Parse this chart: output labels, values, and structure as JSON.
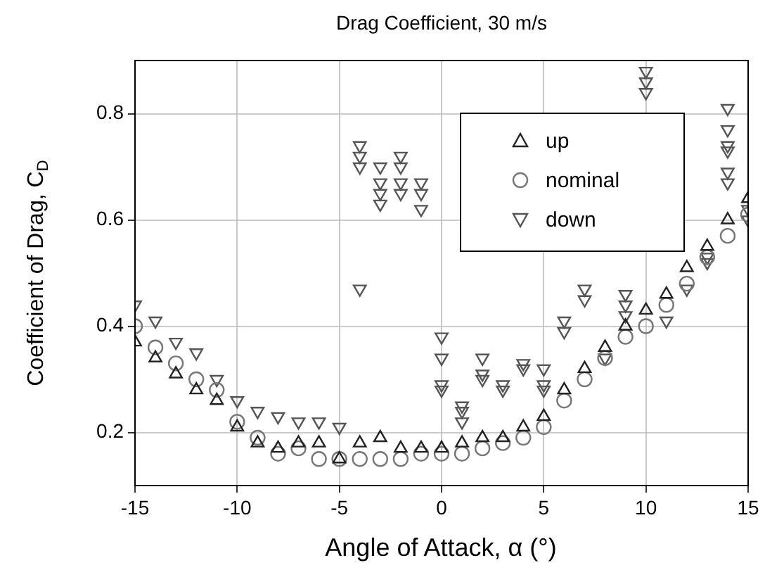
{
  "chart_data": {
    "type": "scatter",
    "title": "Drag Coefficient, 30 m/s",
    "xlabel": "Angle of Attack, α (°)",
    "ylabel": "Coefficient of Drag, C$_{D}$",
    "xlim": [
      -15,
      15
    ],
    "xticks": [
      -15,
      -10,
      -5,
      0,
      5,
      10,
      15
    ],
    "ylim": [
      0.1,
      0.9
    ],
    "yticks": [
      0.2,
      0.4,
      0.6,
      0.8
    ],
    "grid": true,
    "legend": "top right",
    "series": [
      {
        "name": "up",
        "color": "#222222",
        "marker": "triangle",
        "x": [
          -15,
          -14,
          -13,
          -12,
          -11,
          -10,
          -9,
          -8,
          -7,
          -6,
          -5,
          -4,
          -3,
          -2,
          -1,
          0,
          1,
          2,
          3,
          4,
          5,
          6,
          7,
          8,
          9,
          10,
          11,
          12,
          13,
          14,
          15
        ],
        "values": [
          0.37,
          0.34,
          0.31,
          0.28,
          0.26,
          0.21,
          0.18,
          0.17,
          0.18,
          0.18,
          0.15,
          0.18,
          0.19,
          0.17,
          0.17,
          0.17,
          0.18,
          0.19,
          0.19,
          0.21,
          0.23,
          0.28,
          0.32,
          0.36,
          0.4,
          0.43,
          0.46,
          0.51,
          0.55,
          0.6,
          0.64
        ]
      },
      {
        "name": "nominal",
        "color": "#777777",
        "marker": "circle",
        "x": [
          -15,
          -14,
          -13,
          -12,
          -11,
          -10,
          -9,
          -8,
          -7,
          -6,
          -5,
          -4,
          -3,
          -2,
          -1,
          0,
          1,
          2,
          3,
          4,
          5,
          6,
          7,
          8,
          9,
          10,
          11,
          12,
          13,
          14,
          15
        ],
        "values": [
          0.4,
          0.36,
          0.33,
          0.3,
          0.28,
          0.22,
          0.19,
          0.16,
          0.17,
          0.15,
          0.15,
          0.15,
          0.15,
          0.15,
          0.16,
          0.16,
          0.16,
          0.17,
          0.18,
          0.19,
          0.21,
          0.26,
          0.3,
          0.34,
          0.38,
          0.4,
          0.44,
          0.48,
          0.53,
          0.57,
          0.61
        ]
      },
      {
        "name": "down",
        "color": "#555555",
        "marker": "triangle-down",
        "x": [
          -15,
          -14,
          -13,
          -12,
          -11,
          -10,
          -9,
          -8,
          -7,
          -6,
          -5,
          -4,
          -4,
          -4,
          -4,
          -3,
          -3,
          -3,
          -3,
          -2,
          -2,
          -2,
          -2,
          -1,
          -1,
          -1,
          0,
          0,
          0,
          0,
          1,
          1,
          1,
          2,
          2,
          2,
          3,
          3,
          4,
          4,
          5,
          5,
          5,
          6,
          6,
          7,
          7,
          8,
          9,
          9,
          9,
          10,
          10,
          10,
          11,
          12,
          13,
          13,
          14,
          14,
          14,
          14,
          14,
          14,
          15,
          15
        ],
        "values": [
          0.44,
          0.41,
          0.37,
          0.35,
          0.3,
          0.26,
          0.24,
          0.23,
          0.22,
          0.22,
          0.21,
          0.74,
          0.72,
          0.7,
          0.47,
          0.7,
          0.67,
          0.65,
          0.63,
          0.72,
          0.7,
          0.67,
          0.65,
          0.67,
          0.65,
          0.62,
          0.38,
          0.34,
          0.29,
          0.28,
          0.25,
          0.24,
          0.22,
          0.34,
          0.31,
          0.3,
          0.29,
          0.28,
          0.33,
          0.32,
          0.32,
          0.29,
          0.28,
          0.41,
          0.39,
          0.47,
          0.45,
          0.34,
          0.46,
          0.44,
          0.42,
          0.88,
          0.86,
          0.84,
          0.41,
          0.47,
          0.53,
          0.52,
          0.81,
          0.77,
          0.74,
          0.73,
          0.69,
          0.67,
          0.62,
          0.6
        ]
      }
    ]
  }
}
